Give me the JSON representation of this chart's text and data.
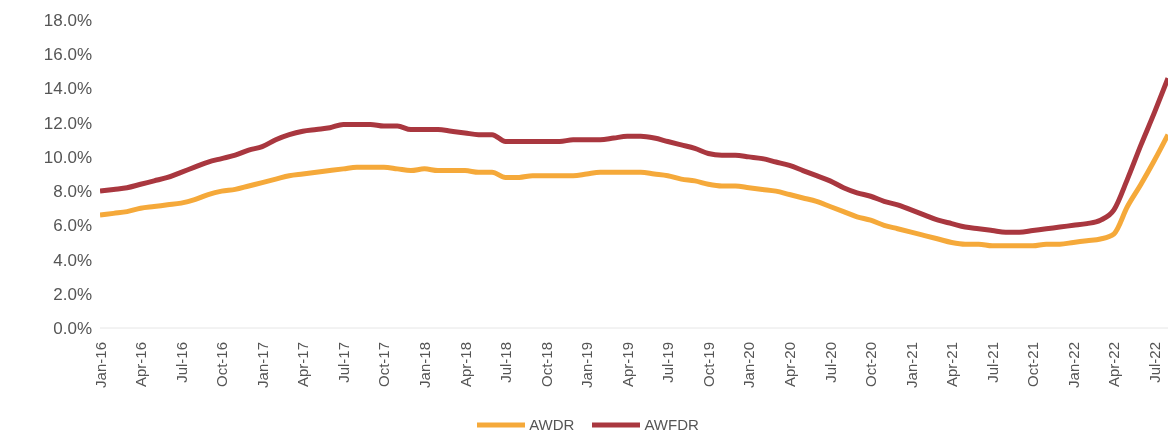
{
  "chart_data": {
    "type": "line",
    "categories": [
      "Jan-16",
      null,
      null,
      "Apr-16",
      null,
      null,
      "Jul-16",
      null,
      null,
      "Oct-16",
      null,
      null,
      "Jan-17",
      null,
      null,
      "Apr-17",
      null,
      null,
      "Jul-17",
      null,
      null,
      "Oct-17",
      null,
      null,
      "Jan-18",
      null,
      null,
      "Apr-18",
      null,
      null,
      "Jul-18",
      null,
      null,
      "Oct-18",
      null,
      null,
      "Jan-19",
      null,
      null,
      "Apr-19",
      null,
      null,
      "Jul-19",
      null,
      null,
      "Oct-19",
      null,
      null,
      "Jan-20",
      null,
      null,
      "Apr-20",
      null,
      null,
      "Jul-20",
      null,
      null,
      "Oct-20",
      null,
      null,
      "Jan-21",
      null,
      null,
      "Apr-21",
      null,
      null,
      "Jul-21",
      null,
      null,
      "Oct-21",
      null,
      null,
      "Jan-22",
      null,
      null,
      "Apr-22",
      null,
      null,
      "Jul-22",
      null
    ],
    "series": [
      {
        "name": "AWDR",
        "color": "#f5a93a",
        "values": [
          6.6,
          6.7,
          6.8,
          7.0,
          7.1,
          7.2,
          7.3,
          7.5,
          7.8,
          8.0,
          8.1,
          8.3,
          8.5,
          8.7,
          8.9,
          9.0,
          9.1,
          9.2,
          9.3,
          9.4,
          9.4,
          9.4,
          9.3,
          9.2,
          9.3,
          9.2,
          9.2,
          9.2,
          9.1,
          9.1,
          8.8,
          8.8,
          8.9,
          8.9,
          8.9,
          8.9,
          9.0,
          9.1,
          9.1,
          9.1,
          9.1,
          9.0,
          8.9,
          8.7,
          8.6,
          8.4,
          8.3,
          8.3,
          8.2,
          8.1,
          8.0,
          7.8,
          7.6,
          7.4,
          7.1,
          6.8,
          6.5,
          6.3,
          6.0,
          5.8,
          5.6,
          5.4,
          5.2,
          5.0,
          4.9,
          4.9,
          4.8,
          4.8,
          4.8,
          4.8,
          4.9,
          4.9,
          5.0,
          5.1,
          5.2,
          5.5,
          7.1,
          8.4,
          9.8,
          11.3
        ]
      },
      {
        "name": "AWFDR",
        "color": "#a9373f",
        "values": [
          8.0,
          8.1,
          8.2,
          8.4,
          8.6,
          8.8,
          9.1,
          9.4,
          9.7,
          9.9,
          10.1,
          10.4,
          10.6,
          11.0,
          11.3,
          11.5,
          11.6,
          11.7,
          11.9,
          11.9,
          11.9,
          11.8,
          11.8,
          11.6,
          11.6,
          11.6,
          11.5,
          11.4,
          11.3,
          11.3,
          10.9,
          10.9,
          10.9,
          10.9,
          10.9,
          11.0,
          11.0,
          11.0,
          11.1,
          11.2,
          11.2,
          11.1,
          10.9,
          10.7,
          10.5,
          10.2,
          10.1,
          10.1,
          10.0,
          9.9,
          9.7,
          9.5,
          9.2,
          8.9,
          8.6,
          8.2,
          7.9,
          7.7,
          7.4,
          7.2,
          6.9,
          6.6,
          6.3,
          6.1,
          5.9,
          5.8,
          5.7,
          5.6,
          5.6,
          5.7,
          5.8,
          5.9,
          6.0,
          6.1,
          6.3,
          6.9,
          8.7,
          10.7,
          12.6,
          14.6
        ]
      }
    ],
    "ylim": [
      0,
      18
    ],
    "yticks": [
      {
        "value": 0,
        "label": "0.0%"
      },
      {
        "value": 2,
        "label": "2.0%"
      },
      {
        "value": 4,
        "label": "4.0%"
      },
      {
        "value": 6,
        "label": "6.0%"
      },
      {
        "value": 8,
        "label": "8.0%"
      },
      {
        "value": 10,
        "label": "10.0%"
      },
      {
        "value": 12,
        "label": "12.0%"
      },
      {
        "value": 14,
        "label": "14.0%"
      },
      {
        "value": 16,
        "label": "16.0%"
      },
      {
        "value": 18,
        "label": "18.0%"
      }
    ],
    "grid": false,
    "legend": "bottom",
    "marker": "none",
    "line_style": "solid"
  }
}
